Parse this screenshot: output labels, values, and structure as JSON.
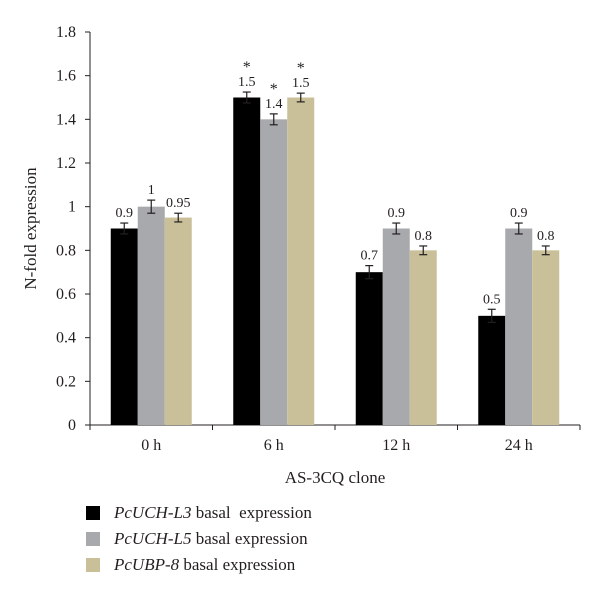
{
  "chart_data": {
    "type": "bar",
    "categories": [
      "0 h",
      "6 h",
      "12 h",
      "24 h"
    ],
    "xlabel": "AS-3CQ clone",
    "ylabel": "N-fold expression",
    "ylim": [
      0,
      1.8
    ],
    "yticks": [
      "0",
      "0.2",
      "0.4",
      "0.6",
      "0.8",
      "1",
      "1.2",
      "1.4",
      "1.6",
      "1.8"
    ],
    "grid": false,
    "legend_position": "bottom-left",
    "series": [
      {
        "gene": "PcUCH-L3",
        "suffix": " basal  expression",
        "color": "#000000",
        "values": [
          0.9,
          1.5,
          0.7,
          0.5
        ],
        "errors": [
          0.025,
          0.025,
          0.03,
          0.03
        ],
        "labels": [
          "0.9",
          "1.5",
          "0.7",
          "0.5"
        ],
        "marks": [
          "",
          "*",
          "",
          ""
        ]
      },
      {
        "gene": "PcUCH-L5",
        "suffix": " basal expression",
        "color": "#a7a9ac",
        "values": [
          1.0,
          1.4,
          0.9,
          0.9
        ],
        "errors": [
          0.03,
          0.025,
          0.025,
          0.025
        ],
        "labels": [
          "1",
          "1.4",
          "0.9",
          "0.9"
        ],
        "marks": [
          "",
          "*",
          "",
          ""
        ]
      },
      {
        "gene": "PcUBP-8",
        "suffix": " basal expression",
        "color": "#c9c09a",
        "values": [
          0.95,
          1.5,
          0.8,
          0.8
        ],
        "errors": [
          0.02,
          0.02,
          0.02,
          0.02
        ],
        "labels": [
          "0.95",
          "1.5",
          "0.8",
          "0.8"
        ],
        "marks": [
          "",
          "*",
          "",
          ""
        ]
      }
    ]
  }
}
